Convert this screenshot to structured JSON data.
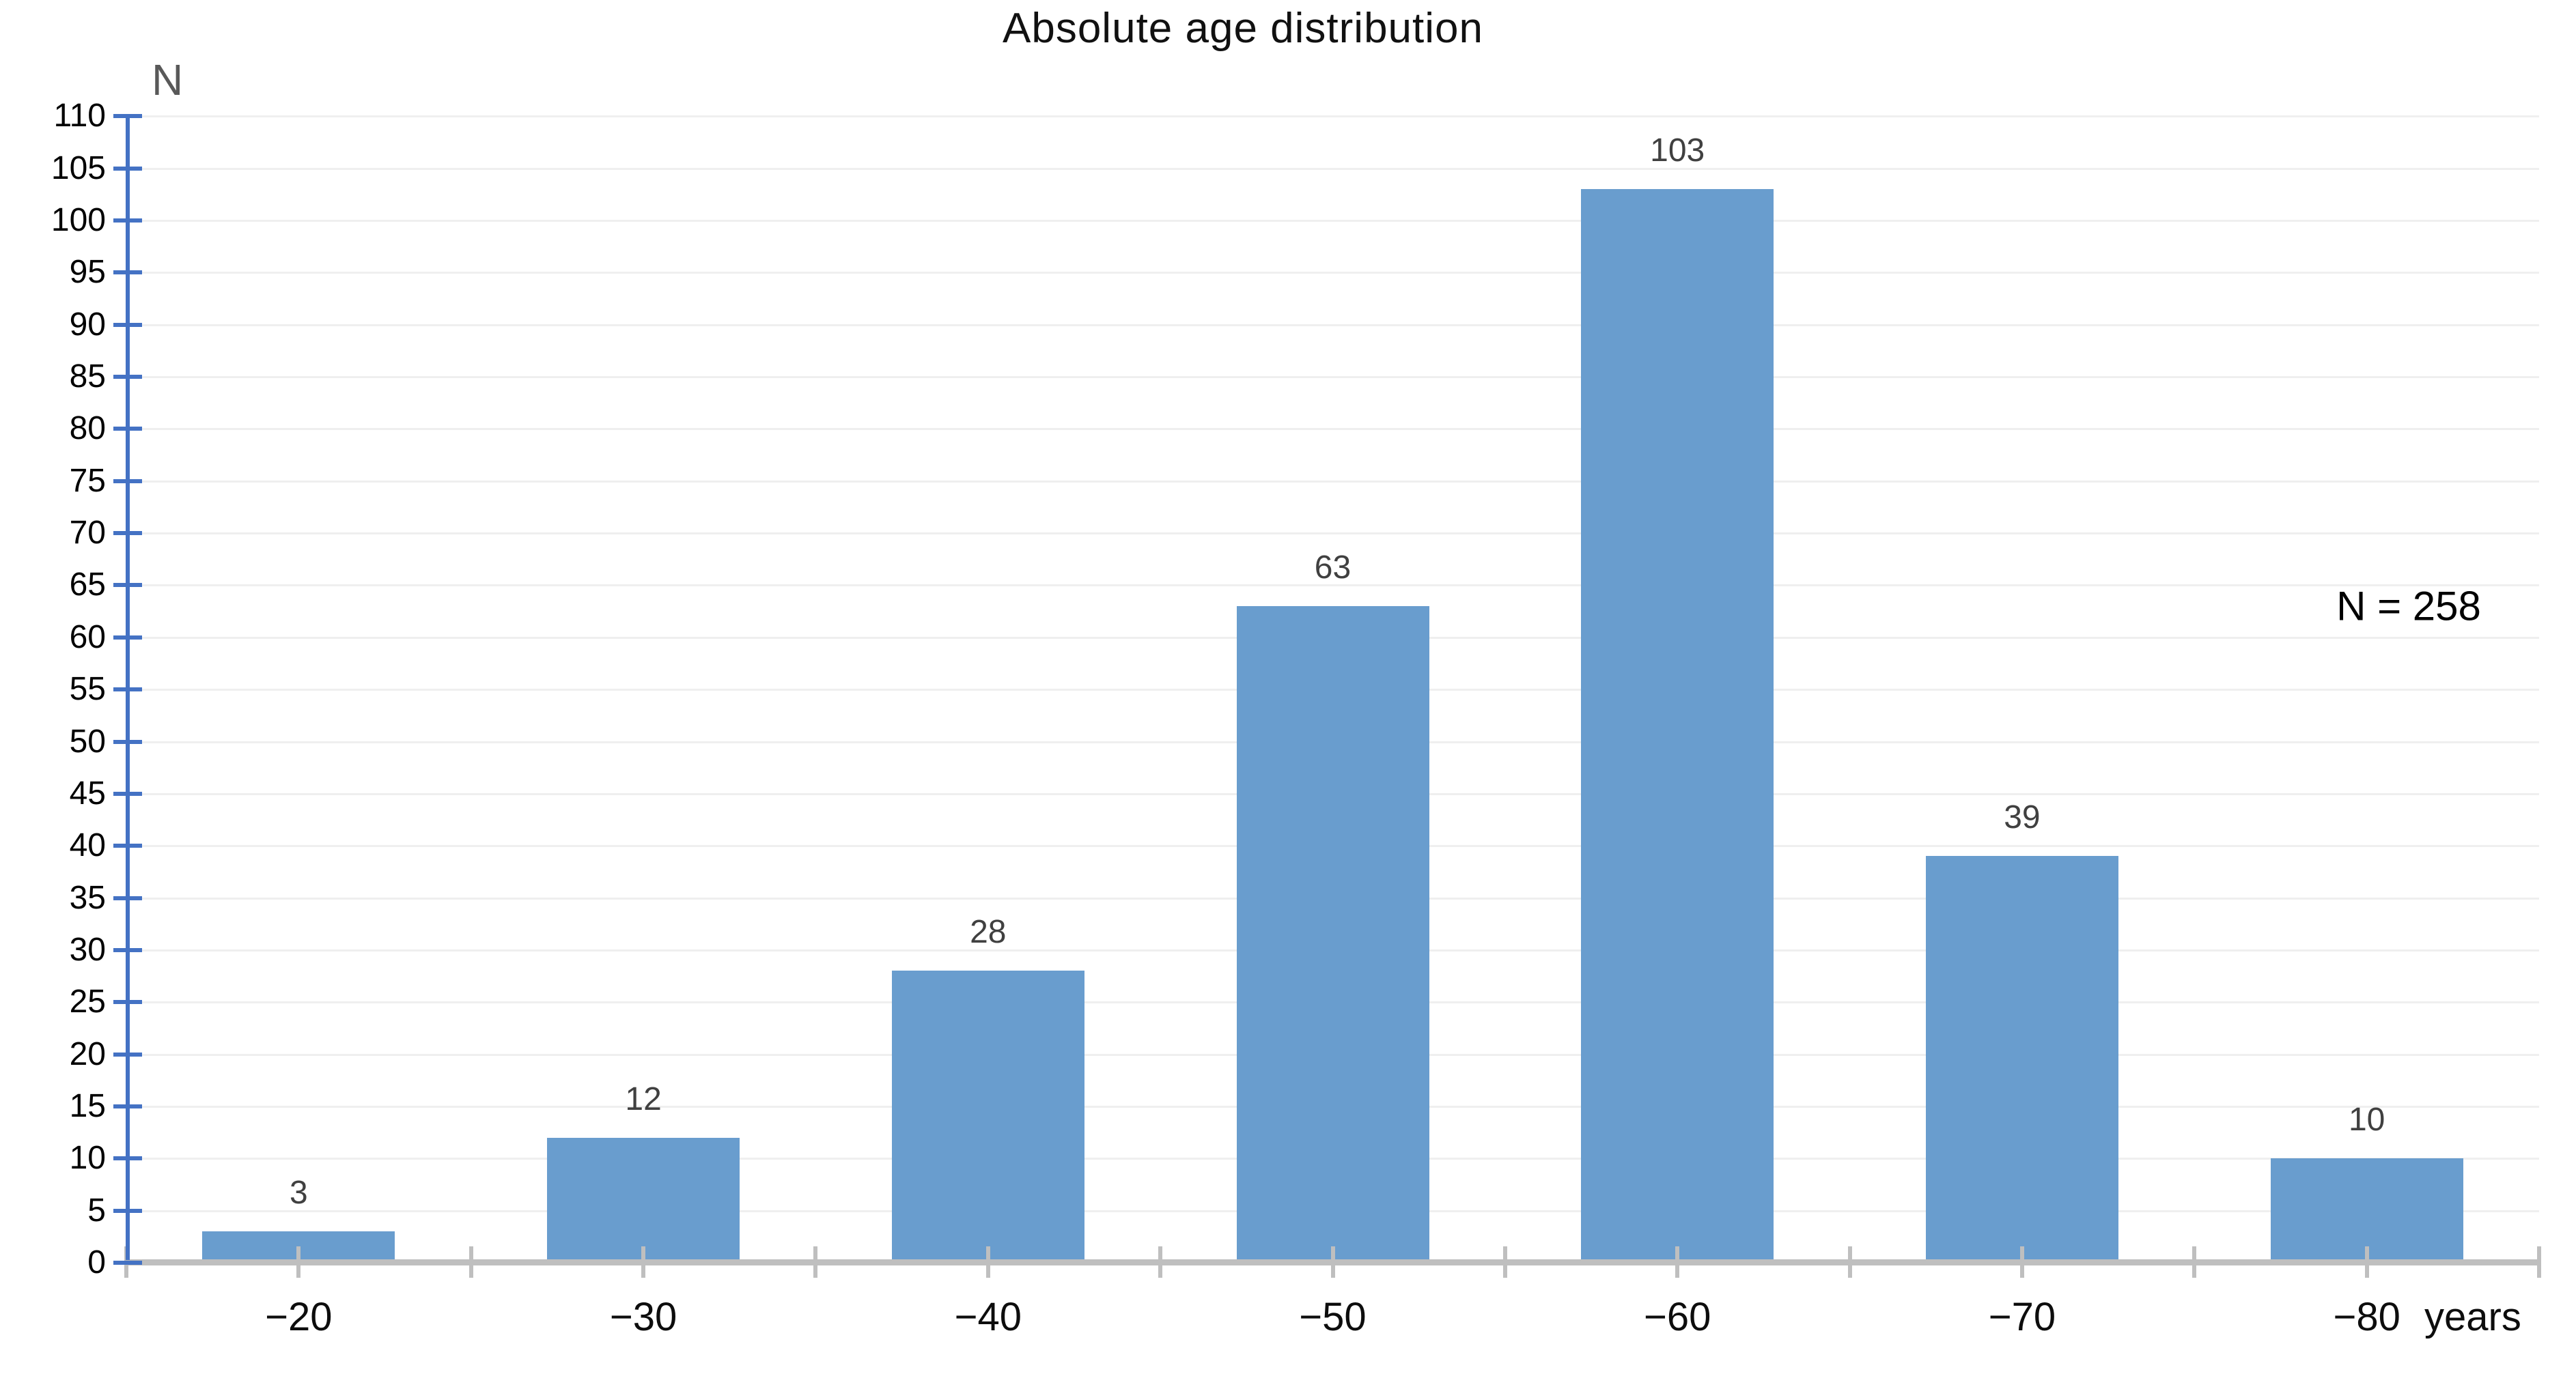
{
  "chart_data": {
    "type": "bar",
    "title": "Absolute age distribution",
    "y_axis_label": "N",
    "x_axis_label": "years",
    "annotation": "N = 258",
    "categories": [
      "−20",
      "−30",
      "−40",
      "−50",
      "−60",
      "−70",
      "−80"
    ],
    "values": [
      3,
      12,
      28,
      63,
      103,
      39,
      10
    ],
    "data_labels": [
      "3",
      "12",
      "28",
      "63",
      "103",
      "39",
      "10"
    ],
    "ylim": [
      0,
      110
    ],
    "y_tick_step": 5,
    "grid": "horizontal",
    "legend": "none",
    "colors": {
      "bar": "#699dce",
      "y_axis": "#4472c4",
      "x_axis": "#bfbfbf",
      "gridline": "#efefef",
      "data_label": "#404040",
      "text": "#0d0d0d",
      "y_axis_title": "#595959"
    }
  }
}
